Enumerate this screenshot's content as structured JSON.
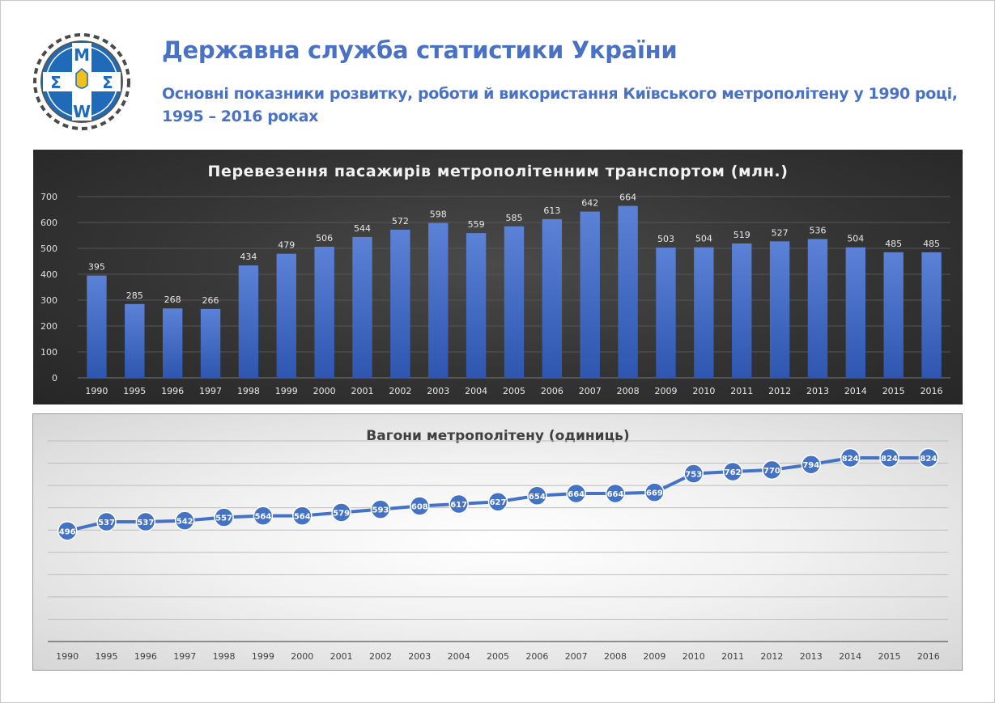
{
  "header": {
    "title": "Державна служба статистики України",
    "subtitle": "Основні показники розвитку, роботи й використання Київського метрополітену у 1990 році, 1995 – 2016 роках",
    "logo_icon": "ukrstat-emblem-icon"
  },
  "colors": {
    "brand_blue": "#4a72c4",
    "bar_top": "#5b82d6",
    "bar_bottom": "#2f56b0",
    "line": "#4472c4"
  },
  "chart_data": [
    {
      "type": "bar",
      "title": "Перевезення пасажирів метрополітенним транспортом (млн.)",
      "categories": [
        "1990",
        "1995",
        "1996",
        "1997",
        "1998",
        "1999",
        "2000",
        "2001",
        "2002",
        "2003",
        "2004",
        "2005",
        "2006",
        "2007",
        "2008",
        "2009",
        "2010",
        "2011",
        "2012",
        "2013",
        "2014",
        "2015",
        "2016"
      ],
      "values": [
        395,
        285,
        268,
        266,
        434,
        479,
        506,
        544,
        572,
        598,
        559,
        585,
        613,
        642,
        664,
        503,
        504,
        519,
        527,
        536,
        504,
        485,
        485
      ],
      "yticks": [
        0,
        100,
        200,
        300,
        400,
        500,
        600,
        700
      ],
      "ylim": [
        0,
        700
      ],
      "grid": true,
      "data_labels": true
    },
    {
      "type": "line",
      "title": "Вагони метрополітену (одиниць)",
      "categories": [
        "1990",
        "1995",
        "1996",
        "1997",
        "1998",
        "1999",
        "2000",
        "2001",
        "2002",
        "2003",
        "2004",
        "2005",
        "2006",
        "2007",
        "2008",
        "2009",
        "2010",
        "2011",
        "2012",
        "2013",
        "2014",
        "2015",
        "2016"
      ],
      "values": [
        496,
        537,
        537,
        542,
        557,
        564,
        564,
        579,
        593,
        608,
        617,
        627,
        654,
        664,
        664,
        669,
        753,
        762,
        770,
        794,
        824,
        824,
        824
      ],
      "ylim": [
        0,
        900
      ],
      "grid": true,
      "data_labels": true
    }
  ]
}
